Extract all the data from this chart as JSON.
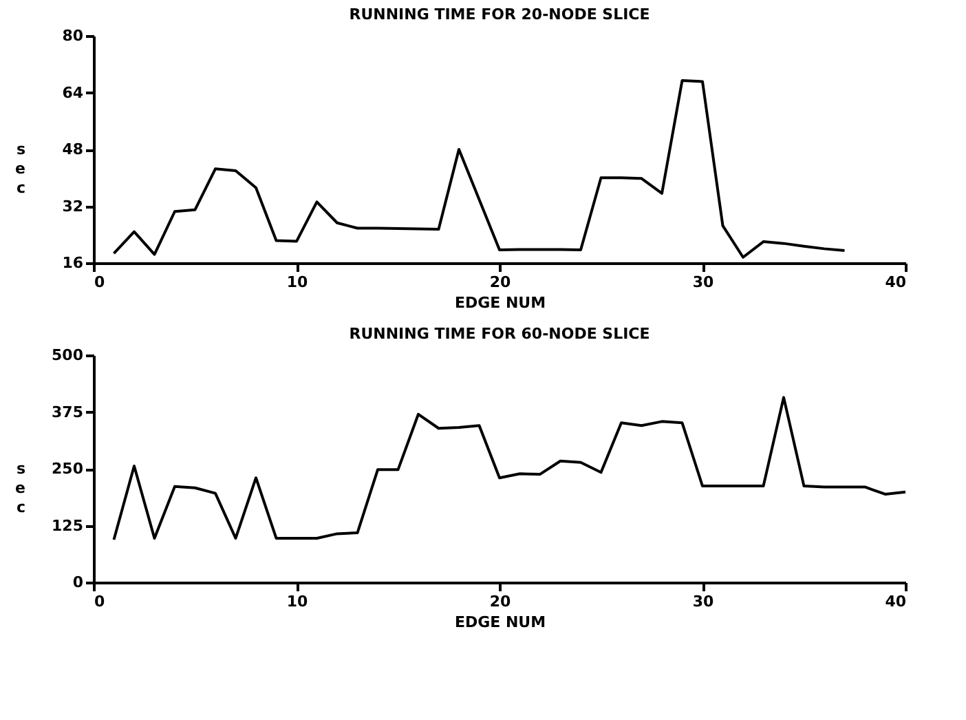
{
  "chart_data": [
    {
      "type": "line",
      "title": "RUNNING TIME FOR 20-NODE SLICE",
      "xlabel": "EDGE NUM",
      "ylabel": "sec",
      "x": [
        1,
        2,
        3,
        4,
        5,
        6,
        7,
        8,
        9,
        10,
        11,
        12,
        13,
        14,
        15,
        16,
        17,
        18,
        20,
        21,
        22,
        23,
        24,
        25,
        26,
        27,
        28,
        29,
        30,
        31,
        32,
        33,
        34,
        35,
        36,
        37
      ],
      "series": [
        {
          "color": "#000000",
          "values": [
            18.7,
            24.8,
            18.4,
            30.5,
            31,
            42.5,
            42,
            37.2,
            22.3,
            22.1,
            33.2,
            27.3,
            25.8,
            25.8,
            25.7,
            25.6,
            25.5,
            48,
            19.7,
            19.8,
            19.8,
            19.8,
            19.7,
            40,
            40,
            39.8,
            35.6,
            67.4,
            67.1,
            26.5,
            17.6,
            22,
            21.5,
            20.7,
            20,
            19.5
          ]
        }
      ],
      "xlim": [
        0,
        40
      ],
      "xticks": [
        0,
        10,
        20,
        30,
        40
      ],
      "ylim": [
        16,
        80
      ],
      "yticks": [
        16,
        32,
        48,
        64,
        80
      ]
    },
    {
      "type": "line",
      "title": "RUNNING TIME FOR 60-NODE SLICE",
      "xlabel": "EDGE NUM",
      "ylabel": "sec",
      "x": [
        1,
        2,
        3,
        4,
        5,
        6,
        7,
        8,
        9,
        10,
        11,
        12,
        13,
        14,
        15,
        16,
        17,
        18,
        19,
        20,
        21,
        22,
        23,
        24,
        25,
        26,
        27,
        28,
        29,
        30,
        31,
        32,
        33,
        34,
        35,
        36,
        37,
        38,
        39,
        40
      ],
      "series": [
        {
          "color": "#000000",
          "values": [
            94,
            256,
            97,
            211,
            208,
            196,
            97,
            230,
            97,
            97,
            97,
            107,
            109,
            248,
            248,
            370,
            339,
            341,
            345,
            230,
            239,
            238,
            267,
            264,
            242,
            351,
            345,
            354,
            351,
            212,
            212,
            212,
            212,
            407,
            212,
            210,
            210,
            210,
            194,
            199
          ]
        }
      ],
      "xlim": [
        0,
        40
      ],
      "xticks": [
        0,
        10,
        20,
        30,
        40
      ],
      "ylim": [
        0,
        500
      ],
      "yticks": [
        0,
        125,
        250,
        375,
        500
      ]
    }
  ]
}
